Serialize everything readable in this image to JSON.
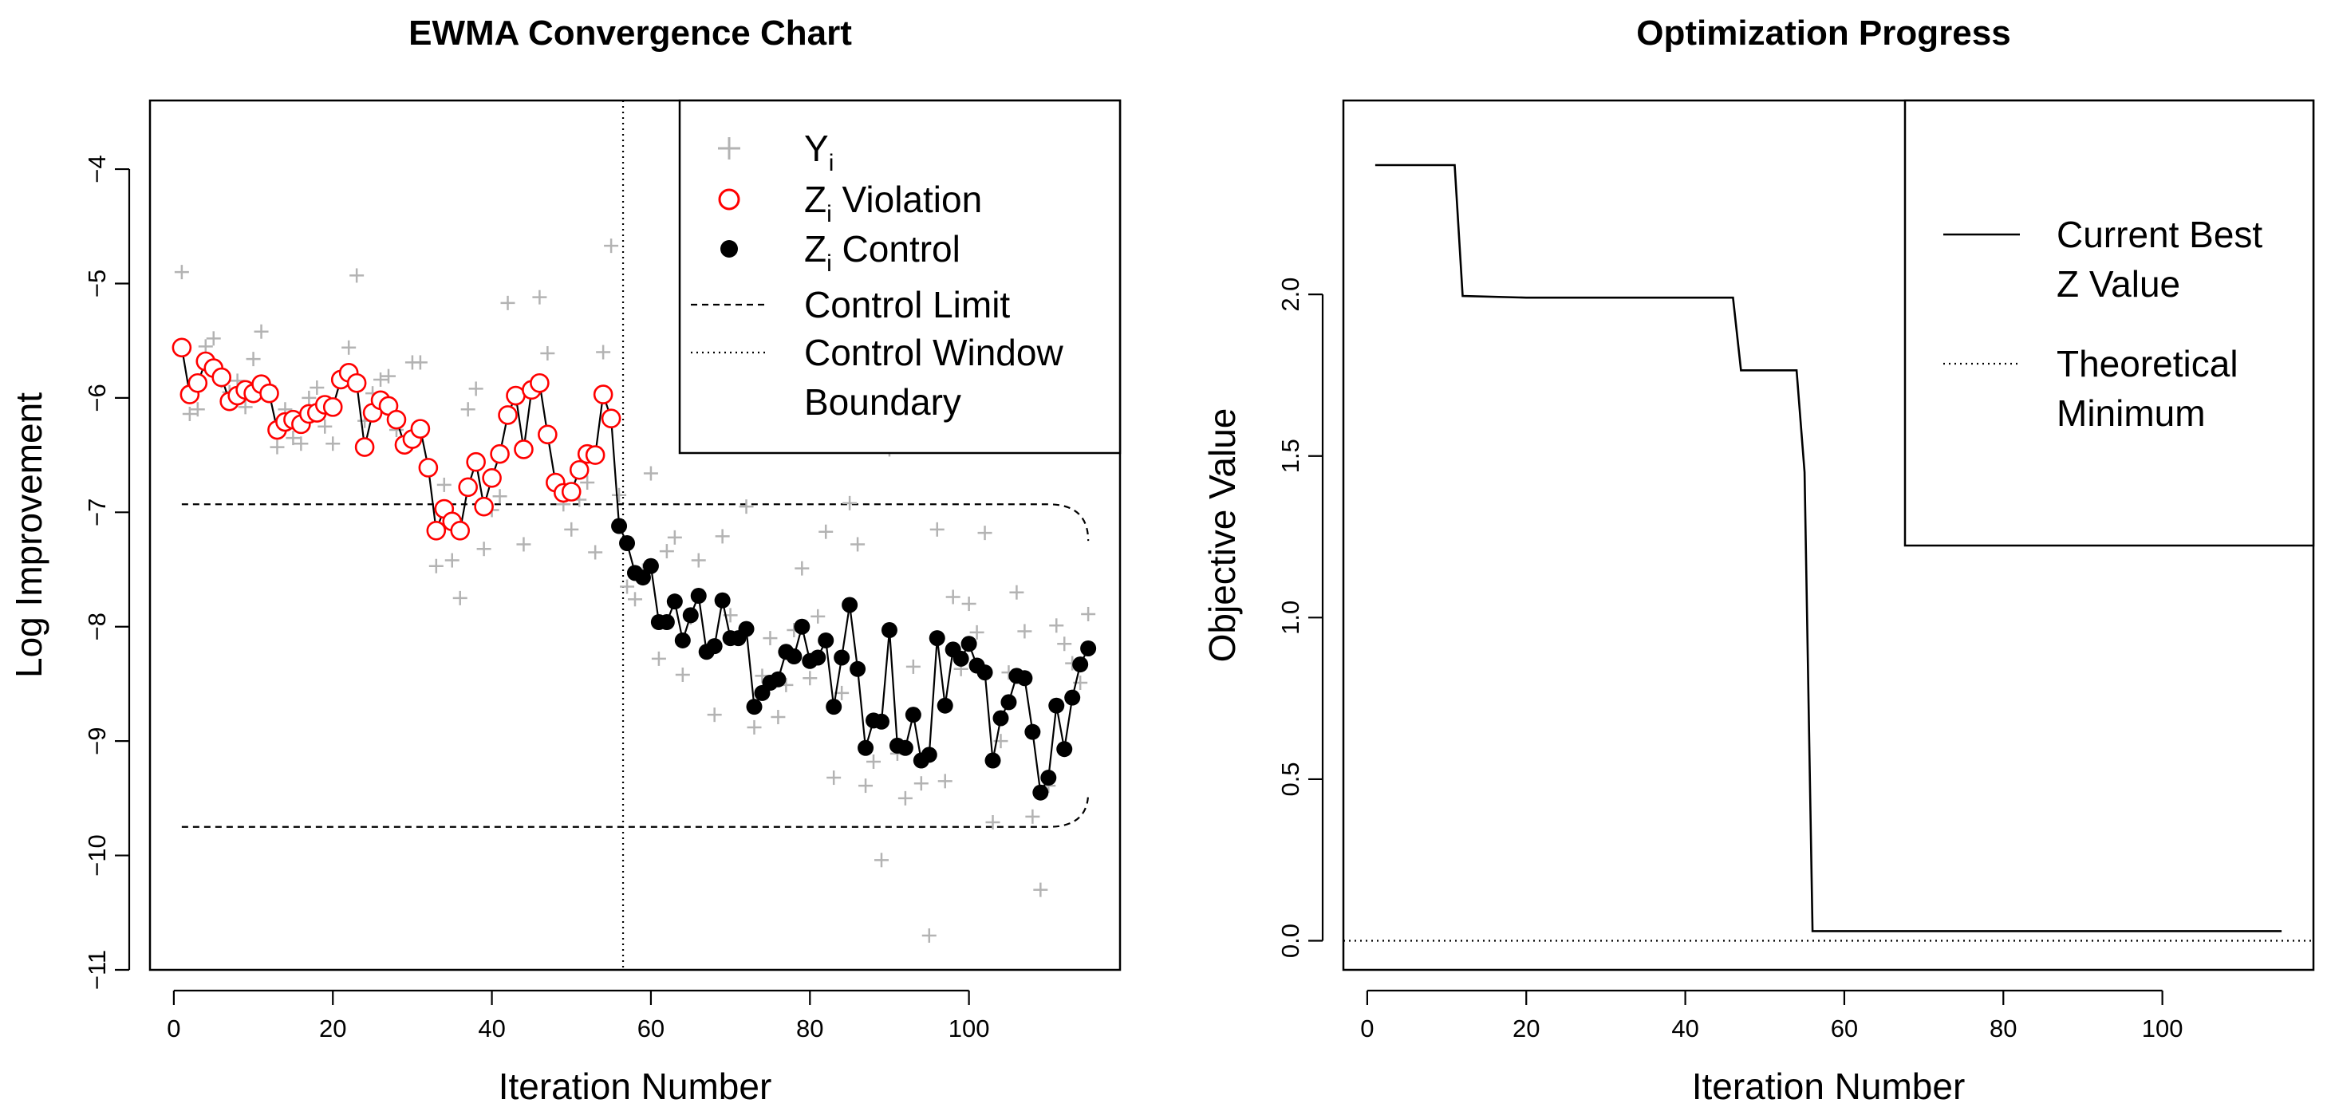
{
  "chart_data": [
    {
      "type": "scatter",
      "title": "EWMA Convergence Chart",
      "xlabel": "Iteration Number",
      "ylabel": "Log Improvement",
      "xlim": [
        -3,
        119
      ],
      "ylim": [
        -11,
        -3.4
      ],
      "xticks": [
        0,
        20,
        40,
        60,
        80,
        100
      ],
      "yticks": [
        -11,
        -10,
        -9,
        -8,
        -7,
        -6,
        -5,
        -4
      ],
      "legend": {
        "position": "top-right",
        "entries": [
          {
            "label": "Y",
            "sub": "i",
            "symbol": "plus",
            "color": "#b3b3b3"
          },
          {
            "label": " Violation",
            "prefix": "Z",
            "sub": "i",
            "symbol": "open-circle",
            "color": "#ff0000"
          },
          {
            "label": " Control",
            "prefix": "Z",
            "sub": "i",
            "symbol": "filled-circle",
            "color": "#000000"
          },
          {
            "label": "Control Limit",
            "symbol": "dashed-line",
            "color": "#000000"
          },
          {
            "label": "Control Window",
            "label2": "Boundary",
            "symbol": "dotted-line",
            "color": "#000000"
          }
        ]
      },
      "control_window_boundary": 56.5,
      "control_limits": {
        "x_start": 1,
        "x_flat_end": 110,
        "x_end": 115,
        "upper": -6.93,
        "upper_end": -7.25,
        "lower": -9.75,
        "lower_end": -9.45
      },
      "violation_until": 55,
      "z": [
        -5.56,
        -5.97,
        -5.87,
        -5.68,
        -5.74,
        -5.82,
        -6.03,
        -5.98,
        -5.93,
        -5.96,
        -5.88,
        -5.96,
        -6.28,
        -6.21,
        -6.19,
        -6.23,
        -6.14,
        -6.13,
        -6.06,
        -6.08,
        -5.84,
        -5.78,
        -5.87,
        -6.43,
        -6.13,
        -6.02,
        -6.07,
        -6.19,
        -6.41,
        -6.36,
        -6.27,
        -6.61,
        -7.16,
        -6.97,
        -7.08,
        -7.16,
        -6.78,
        -6.56,
        -6.95,
        -6.7,
        -6.49,
        -6.15,
        -5.98,
        -6.45,
        -5.93,
        -5.87,
        -6.32,
        -6.74,
        -6.83,
        -6.82,
        -6.63,
        -6.49,
        -6.5,
        -5.97,
        -6.18,
        -7.12,
        -7.27,
        -7.53,
        -7.57,
        -7.47,
        -7.96,
        -7.96,
        -7.78,
        -8.12,
        -7.9,
        -7.73,
        -8.22,
        -8.17,
        -7.77,
        -8.1,
        -8.1,
        -8.02,
        -8.7,
        -8.58,
        -8.49,
        -8.46,
        -8.22,
        -8.26,
        -8.0,
        -8.3,
        -8.27,
        -8.12,
        -8.7,
        -8.27,
        -7.81,
        -8.37,
        -9.06,
        -8.82,
        -8.83,
        -8.03,
        -9.04,
        -9.06,
        -8.77,
        -9.17,
        -9.12,
        -8.1,
        -8.69,
        -8.2,
        -8.28,
        -8.15,
        -8.34,
        -8.4,
        -9.17,
        -8.8,
        -8.66,
        -8.43,
        -8.45,
        -8.92,
        -9.45,
        -9.32,
        -8.69,
        -9.07,
        -8.62,
        -8.33,
        -8.19
      ],
      "y": [
        -4.9,
        -6.14,
        -6.1,
        -5.55,
        -5.48,
        -5.85,
        -5.95,
        -5.85,
        -6.08,
        -5.66,
        -5.42,
        -5.9,
        -6.43,
        -6.1,
        -6.35,
        -6.4,
        -6.0,
        -5.91,
        -6.25,
        -6.4,
        -5.8,
        -5.56,
        -4.93,
        -6.2,
        -5.96,
        -5.84,
        -5.81,
        -6.28,
        -6.42,
        -5.69,
        -5.69,
        -6.6,
        -7.47,
        -6.76,
        -7.42,
        -7.75,
        -6.1,
        -5.92,
        -7.32,
        -6.98,
        -6.86,
        -5.17,
        -6.01,
        -7.28,
        -5.95,
        -5.12,
        -5.61,
        -6.74,
        -6.93,
        -7.15,
        -6.89,
        -6.74,
        -7.35,
        -5.6,
        -4.67,
        -6.85,
        -7.65,
        -7.76,
        -7.51,
        -6.66,
        -8.28,
        -7.34,
        -7.22,
        -8.42,
        -7.92,
        -7.42,
        -8.22,
        -8.77,
        -7.21,
        -7.9,
        -8.1,
        -6.95,
        -8.88,
        -8.43,
        -8.1,
        -8.79,
        -8.51,
        -8.03,
        -7.49,
        -8.45,
        -7.91,
        -7.17,
        -9.32,
        -8.58,
        -6.92,
        -7.28,
        -9.39,
        -9.18,
        -10.04,
        -6.45,
        -9.11,
        -9.5,
        -8.35,
        -9.37,
        -10.7,
        -7.15,
        -9.35,
        -7.74,
        -8.37,
        -7.8,
        -8.05,
        -7.18,
        -9.71,
        -9.0,
        -8.4,
        -7.7,
        -8.04,
        -9.66,
        -10.3,
        -9.39,
        -7.99,
        -8.15,
        -8.32,
        -8.49,
        -7.89
      ]
    },
    {
      "type": "line",
      "title": "Optimization Progress",
      "xlabel": "Iteration Number",
      "ylabel": "Objective Value",
      "xlim": [
        -3,
        119
      ],
      "ylim": [
        -0.09,
        2.6
      ],
      "xticks": [
        0,
        20,
        40,
        60,
        80,
        100
      ],
      "yticks": [
        0.0,
        0.5,
        1.0,
        1.5,
        2.0
      ],
      "ytick_labels": [
        "0.0",
        "0.5",
        "1.0",
        "1.5",
        "2.0"
      ],
      "legend": {
        "position": "top-right",
        "entries": [
          {
            "label": "Current Best",
            "label2": " Z Value",
            "symbol": "solid-line"
          },
          {
            "label": "Theoretical",
            "label2": " Minimum",
            "symbol": "dotted-line"
          }
        ]
      },
      "theoretical_minimum": 0.0,
      "series": [
        {
          "name": "Current Best Z Value",
          "x": [
            1,
            11,
            12,
            20,
            46,
            47,
            54,
            55,
            56,
            115
          ],
          "values": [
            2.4,
            2.4,
            1.995,
            1.99,
            1.99,
            1.765,
            1.765,
            1.45,
            0.03,
            0.03
          ]
        }
      ]
    }
  ]
}
